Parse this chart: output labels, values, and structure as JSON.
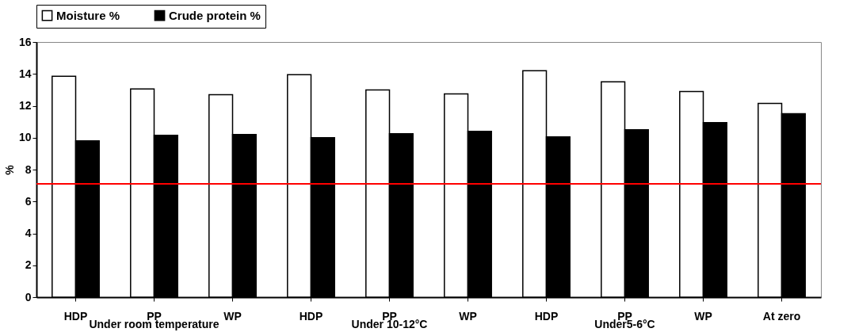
{
  "chart_data": {
    "type": "bar",
    "ylabel": "%",
    "categories": [
      "HDP",
      "PP",
      "WP",
      "HDP",
      "PP",
      "WP",
      "HDP",
      "PP",
      "WP",
      "At zero"
    ],
    "series": [
      {
        "name": "Moisture %",
        "color": "#ffffff",
        "values": [
          13.85,
          13.05,
          12.7,
          13.95,
          13.0,
          12.75,
          14.2,
          13.5,
          12.9,
          12.15
        ]
      },
      {
        "name": "Crude protein %",
        "color": "#000000",
        "values": [
          9.8,
          10.15,
          10.2,
          10.0,
          10.25,
          10.4,
          10.05,
          10.5,
          10.95,
          11.5
        ]
      }
    ],
    "ylim": [
      0,
      16
    ],
    "yticks": [
      0,
      2,
      4,
      6,
      8,
      10,
      12,
      14,
      16
    ],
    "grid": false,
    "legend": "top",
    "ref_lines": [
      {
        "axis": "y",
        "value": 7.1,
        "color": "#ff0000"
      }
    ],
    "annotations": [
      "Under room temperature",
      "Under 10-12°C",
      "Under5-6°C"
    ]
  }
}
